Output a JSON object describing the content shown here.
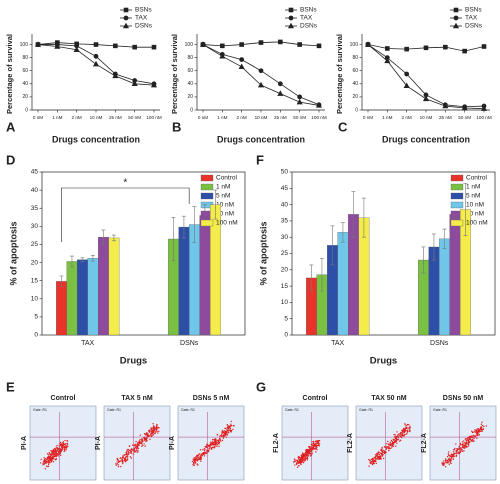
{
  "chart_data": [
    {
      "type": "line",
      "panel": "A",
      "xlabel": "Drugs concentration",
      "ylabel": "Percentage of survival",
      "categories": [
        "0 nM",
        "1 nM",
        "2 nM",
        "10 nM",
        "25 nM",
        "50 nM",
        "100 nM"
      ],
      "ylim": [
        0,
        110
      ],
      "yticks": [
        0,
        20,
        40,
        60,
        80,
        100
      ],
      "series": [
        {
          "name": "BSNs",
          "color": "#222222",
          "marker": "square",
          "values": [
            100,
            103,
            101,
            100,
            98,
            96,
            96
          ]
        },
        {
          "name": "TAX",
          "color": "#222222",
          "marker": "circle",
          "values": [
            100,
            100,
            98,
            82,
            55,
            45,
            40
          ]
        },
        {
          "name": "DSNs",
          "color": "#222222",
          "marker": "triangle",
          "values": [
            100,
            97,
            92,
            70,
            52,
            40,
            38
          ]
        }
      ]
    },
    {
      "type": "line",
      "panel": "B",
      "xlabel": "Drugs concentration",
      "ylabel": "Percentage of survival",
      "categories": [
        "0 nM",
        "1 nM",
        "2 nM",
        "10 nM",
        "25 nM",
        "50 nM",
        "100 nM"
      ],
      "ylim": [
        0,
        110
      ],
      "yticks": [
        0,
        20,
        40,
        60,
        80,
        100
      ],
      "series": [
        {
          "name": "BSNs",
          "color": "#222222",
          "marker": "square",
          "values": [
            100,
            98,
            100,
            103,
            104,
            100,
            98
          ]
        },
        {
          "name": "TAX",
          "color": "#222222",
          "marker": "circle",
          "values": [
            100,
            85,
            77,
            60,
            40,
            20,
            8
          ]
        },
        {
          "name": "DSNs",
          "color": "#222222",
          "marker": "triangle",
          "values": [
            100,
            82,
            66,
            38,
            25,
            12,
            7
          ]
        }
      ]
    },
    {
      "type": "line",
      "panel": "C",
      "xlabel": "Drugs concentration",
      "ylabel": "Percentage of survival",
      "categories": [
        "0 nM",
        "1 nM",
        "2 nM",
        "10 nM",
        "25 nM",
        "50 nM",
        "100 nM"
      ],
      "ylim": [
        0,
        110
      ],
      "yticks": [
        0,
        20,
        40,
        60,
        80,
        100
      ],
      "series": [
        {
          "name": "BSNs",
          "color": "#222222",
          "marker": "square",
          "values": [
            100,
            94,
            93,
            95,
            96,
            90,
            97
          ]
        },
        {
          "name": "TAX",
          "color": "#222222",
          "marker": "circle",
          "values": [
            100,
            80,
            55,
            23,
            8,
            5,
            6
          ]
        },
        {
          "name": "DSNs",
          "color": "#222222",
          "marker": "triangle",
          "values": [
            100,
            75,
            37,
            17,
            6,
            3,
            2
          ]
        }
      ]
    },
    {
      "type": "bar",
      "panel": "D",
      "xlabel": "Drugs",
      "ylabel": "% of apoptosis",
      "annotation": "*",
      "categories": [
        "TAX",
        "DSNs"
      ],
      "ylim": [
        0,
        45
      ],
      "yticks": [
        0,
        5,
        10,
        15,
        20,
        25,
        30,
        35,
        40,
        45
      ],
      "series": [
        {
          "name": "Control",
          "color": "#e8332b",
          "values": [
            14.8,
            null
          ],
          "errors": [
            1.5,
            null
          ]
        },
        {
          "name": "1 nM",
          "color": "#7ac143",
          "values": [
            20.3,
            26.5
          ],
          "errors": [
            1.5,
            6
          ]
        },
        {
          "name": "5 nM",
          "color": "#2e4fa8",
          "values": [
            20.8,
            29.8
          ],
          "errors": [
            0.5,
            3
          ]
        },
        {
          "name": "10 nM",
          "color": "#6fc6e8",
          "values": [
            21.2,
            30.5
          ],
          "errors": [
            0.8,
            5
          ]
        },
        {
          "name": "50 nM",
          "color": "#8e4b9e",
          "values": [
            27,
            33
          ],
          "errors": [
            2,
            3
          ]
        },
        {
          "name": "100 nM",
          "color": "#f4ec4a",
          "values": [
            26.8,
            36
          ],
          "errors": [
            0.8,
            4
          ]
        }
      ]
    },
    {
      "type": "bar",
      "panel": "F",
      "xlabel": "Drugs",
      "ylabel": "% of apoptosis",
      "categories": [
        "TAX",
        "DSNs"
      ],
      "ylim": [
        0,
        50
      ],
      "yticks": [
        0,
        5,
        10,
        15,
        20,
        25,
        30,
        35,
        40,
        45,
        50
      ],
      "series": [
        {
          "name": "Control",
          "color": "#e8332b",
          "values": [
            17.5,
            null
          ],
          "errors": [
            4,
            null
          ]
        },
        {
          "name": "1 nM",
          "color": "#7ac143",
          "values": [
            18.5,
            23
          ],
          "errors": [
            5,
            4
          ]
        },
        {
          "name": "5 nM",
          "color": "#2e4fa8",
          "values": [
            27.5,
            27
          ],
          "errors": [
            6,
            4
          ]
        },
        {
          "name": "10 nM",
          "color": "#6fc6e8",
          "values": [
            31.5,
            29.5
          ],
          "errors": [
            3,
            3
          ]
        },
        {
          "name": "50 nM",
          "color": "#8e4b9e",
          "values": [
            37,
            37
          ],
          "errors": [
            7,
            1
          ]
        },
        {
          "name": "100 nM",
          "color": "#f4ec4a",
          "values": [
            36,
            38.5
          ],
          "errors": [
            6,
            8
          ]
        }
      ]
    }
  ],
  "flow_figures": [
    {
      "panel": "E",
      "y_label": "PI-A",
      "gate": "Gate: R1",
      "plots": [
        {
          "title": "Control"
        },
        {
          "title": "TAX 5 nM"
        },
        {
          "title": "DSNs 5 nM"
        }
      ]
    },
    {
      "panel": "G",
      "y_label": "FL2-A",
      "gate": "Gate: R1",
      "plots": [
        {
          "title": "Control"
        },
        {
          "title": "TAX 50 nM"
        },
        {
          "title": "DSNs 50 nM"
        }
      ]
    }
  ]
}
